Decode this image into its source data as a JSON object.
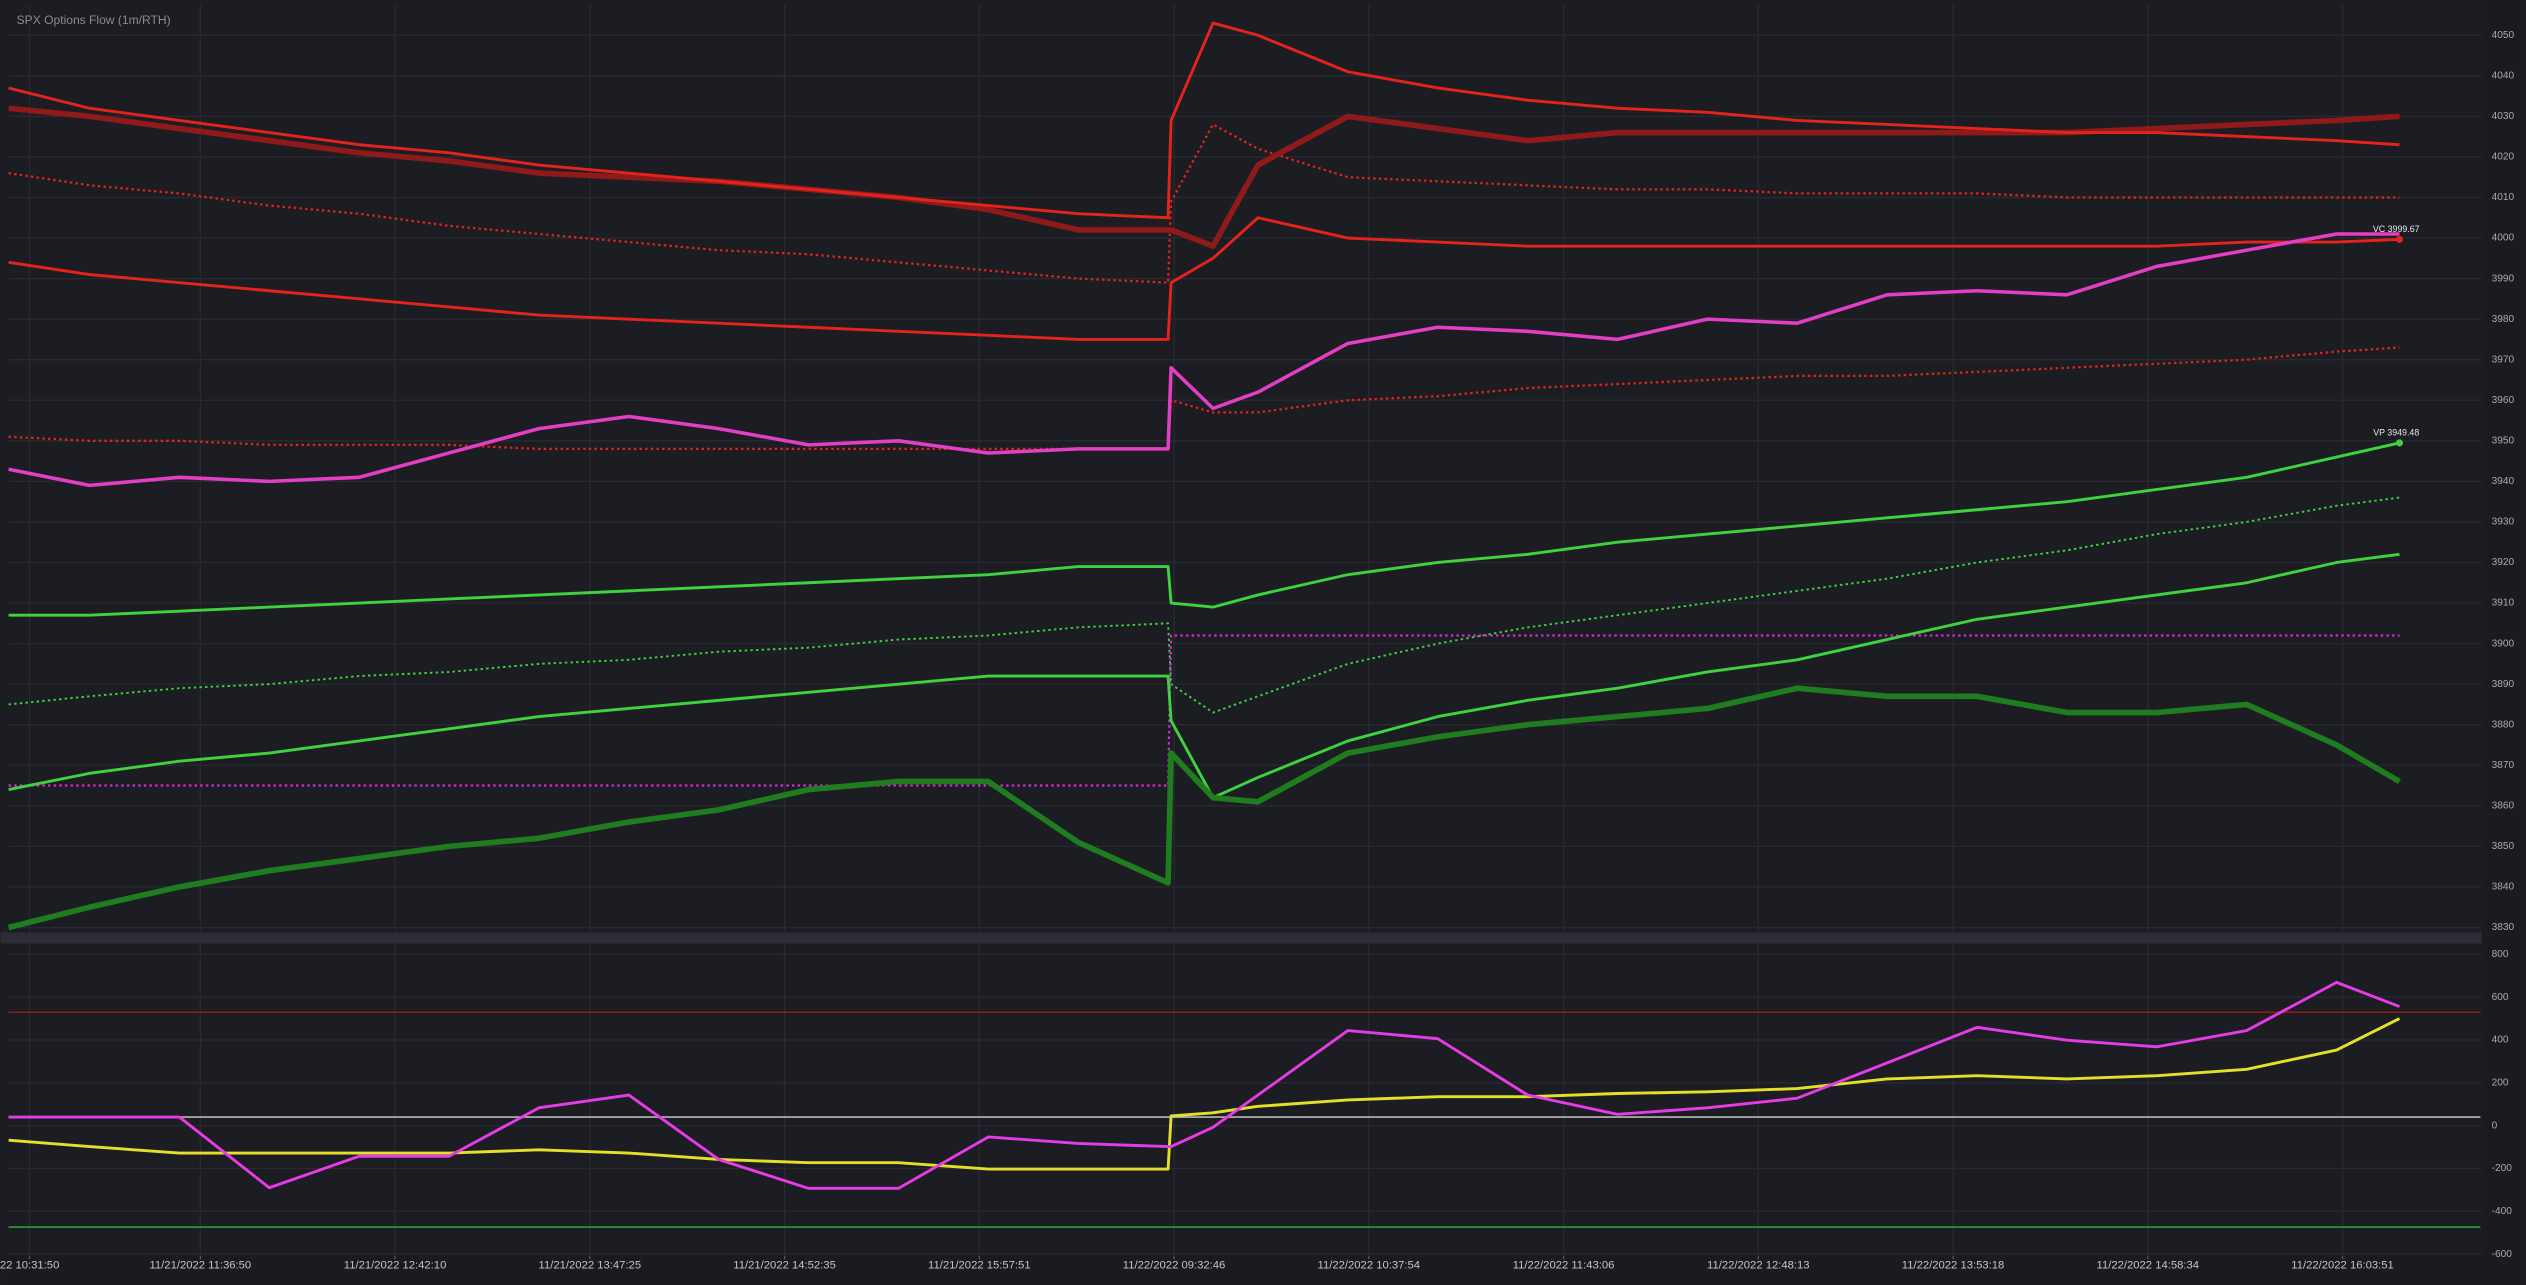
{
  "chart_data": [
    {
      "type": "line",
      "title": "SPX Options Flow (1m/RTH)",
      "x": [
        -7,
        20,
        50,
        80,
        110,
        140,
        170,
        200,
        230,
        260,
        290,
        320,
        350,
        380,
        381,
        395,
        410,
        440,
        470,
        500,
        530,
        560,
        590,
        620,
        650,
        680,
        710,
        740,
        770,
        791
      ],
      "xlim": [
        -7,
        818
      ],
      "ylim": [
        3828.8,
        4057.5
      ],
      "yticks": [
        3830,
        3840,
        3850,
        3860,
        3870,
        3880,
        3890,
        3900,
        3910,
        3920,
        3930,
        3940,
        3950,
        3960,
        3970,
        3980,
        3990,
        4000,
        4010,
        4020,
        4030,
        4040,
        4050
      ],
      "grid": true,
      "series": [
        {
          "color": "#e4231d",
          "width": 1.4,
          "dash": true,
          "values": [
            4016,
            4013,
            4011,
            4008,
            4006,
            4003,
            4001,
            3999,
            3997,
            3996,
            3994,
            3992,
            3990,
            3989,
            4009,
            4028,
            4022,
            4015,
            4014,
            4013,
            4012,
            4012,
            4011,
            4011,
            4011,
            4010,
            4010,
            4010,
            4010,
            4010
          ]
        },
        {
          "color": "#e4231d",
          "width": 1.4,
          "dash": true,
          "values": [
            3951,
            3950,
            3950,
            3949,
            3949,
            3949,
            3948,
            3948,
            3948,
            3948,
            3948,
            3948,
            3948,
            3948,
            3960,
            3957,
            3957,
            3960,
            3961,
            3963,
            3964,
            3965,
            3966,
            3966,
            3967,
            3968,
            3969,
            3970,
            3972,
            3973
          ]
        },
        {
          "color": "#3ed23e",
          "width": 1.2,
          "dash": true,
          "values": [
            3885,
            3887,
            3889,
            3890,
            3892,
            3893,
            3895,
            3896,
            3898,
            3899,
            3901,
            3902,
            3904,
            3905,
            3890,
            3883,
            3887,
            3895,
            3900,
            3904,
            3907,
            3910,
            3913,
            3916,
            3920,
            3923,
            3927,
            3930,
            3934,
            3936
          ]
        },
        {
          "color": "#d62ad6",
          "width": 1.4,
          "dash": true,
          "values": [
            3865,
            3865,
            3865,
            3865,
            3865,
            3865,
            3865,
            3865,
            3865,
            3865,
            3865,
            3865,
            3865,
            3865,
            3902,
            3902,
            3902,
            3902,
            3902,
            3902,
            3902,
            3902,
            3902,
            3902,
            3902,
            3902,
            3902,
            3902,
            3902,
            3902
          ]
        },
        {
          "color": "#8e1a1a",
          "width": 3.5,
          "values": [
            4032,
            4030,
            4027,
            4024,
            4021,
            4019,
            4016,
            4015,
            4014,
            4012,
            4010,
            4007,
            4002,
            4002,
            4002,
            3998,
            4018,
            4030,
            4027,
            4024,
            4026,
            4026,
            4026,
            4026,
            4026,
            4026,
            4027,
            4028,
            4029,
            4030
          ]
        },
        {
          "color": "#e4231d",
          "width": 1.8,
          "values": [
            4037,
            4032,
            4029,
            4026,
            4023,
            4021,
            4018,
            4016,
            4014,
            4012,
            4010,
            4008,
            4006,
            4005,
            4029,
            4053,
            4050,
            4041,
            4037,
            4034,
            4032,
            4031,
            4029,
            4028,
            4027,
            4026,
            4026,
            4025,
            4024,
            4023
          ]
        },
        {
          "color": "#e4231d",
          "width": 1.8,
          "end_marker": true,
          "values": [
            3994,
            3991,
            3989,
            3987,
            3985,
            3983,
            3981,
            3980,
            3979,
            3978,
            3977,
            3976,
            3975,
            3975,
            3989,
            3995,
            4005,
            4000,
            3999,
            3998,
            3998,
            3998,
            3998,
            3998,
            3998,
            3998,
            3998,
            3999,
            3999,
            3999.67
          ]
        },
        {
          "color": "#3ed23e",
          "width": 1.8,
          "end_marker": true,
          "values": [
            3907,
            3907,
            3908,
            3909,
            3910,
            3911,
            3912,
            3913,
            3914,
            3915,
            3916,
            3917,
            3919,
            3919,
            3910,
            3909,
            3912,
            3917,
            3920,
            3922,
            3925,
            3927,
            3929,
            3931,
            3933,
            3935,
            3938,
            3941,
            3946,
            3949.48
          ]
        },
        {
          "color": "#3ed23e",
          "width": 1.8,
          "values": [
            3864,
            3868,
            3871,
            3873,
            3876,
            3879,
            3882,
            3884,
            3886,
            3888,
            3890,
            3892,
            3892,
            3892,
            3881,
            3862,
            3867,
            3876,
            3882,
            3886,
            3889,
            3893,
            3896,
            3901,
            3906,
            3909,
            3912,
            3915,
            3920,
            3922
          ]
        },
        {
          "color": "#1f7d1f",
          "width": 3.5,
          "values": [
            3830,
            3835,
            3840,
            3844,
            3847,
            3850,
            3852,
            3856,
            3859,
            3864,
            3866,
            3866,
            3851,
            3841,
            3873,
            3862,
            3861,
            3873,
            3877,
            3880,
            3882,
            3884,
            3889,
            3887,
            3887,
            3883,
            3883,
            3885,
            3875,
            3866
          ]
        },
        {
          "color": "#e23fc4",
          "width": 2.2,
          "values": [
            3943,
            3939,
            3941,
            3940,
            3941,
            3947,
            3953,
            3956,
            3953,
            3949,
            3950,
            3947,
            3948,
            3948,
            3968,
            3958,
            3962,
            3974,
            3978,
            3977,
            3975,
            3980,
            3979,
            3986,
            3987,
            3986,
            3993,
            3997,
            4001,
            4001
          ]
        }
      ],
      "annotations": [
        {
          "text": "VC 3999.67",
          "x": 791,
          "y": 3999.67
        },
        {
          "text": "VP 3949.48",
          "x": 791,
          "y": 3949.48
        }
      ]
    },
    {
      "type": "line",
      "x": [
        -7,
        20,
        50,
        80,
        110,
        140,
        170,
        200,
        230,
        260,
        290,
        320,
        350,
        380,
        381,
        395,
        410,
        440,
        470,
        500,
        530,
        560,
        590,
        620,
        650,
        680,
        710,
        740,
        770,
        791
      ],
      "xlim": [
        -7,
        818
      ],
      "xticks": [
        {
          "value": 0,
          "label": "22 10:31:50"
        },
        {
          "value": 57,
          "label": "11/21/2022 11:36:50"
        },
        {
          "value": 122,
          "label": "11/21/2022 12:42:10"
        },
        {
          "value": 187,
          "label": "11/21/2022 13:47:25"
        },
        {
          "value": 252,
          "label": "11/21/2022 14:52:35"
        },
        {
          "value": 317,
          "label": "11/21/2022 15:57:51"
        },
        {
          "value": 382,
          "label": "11/22/2022 09:32:46"
        },
        {
          "value": 447,
          "label": "11/22/2022 10:37:54"
        },
        {
          "value": 512,
          "label": "11/22/2022 11:43:06"
        },
        {
          "value": 577,
          "label": "11/22/2022 12:48:13"
        },
        {
          "value": 642,
          "label": "11/22/2022 13:53:18"
        },
        {
          "value": 707,
          "label": "11/22/2022 14:58:34"
        },
        {
          "value": 772,
          "label": "11/22/2022 16:03:51"
        }
      ],
      "ylim": [
        -609,
        850
      ],
      "yticks": [
        -600,
        -400,
        -200,
        0,
        200,
        400,
        600,
        800
      ],
      "grid": true,
      "reference_lines": [
        {
          "value": 530,
          "color": "#8e1a1a"
        },
        {
          "value": 40,
          "color": "#b8b8b8"
        },
        {
          "value": -474,
          "color": "#2e9e2e"
        }
      ],
      "series": [
        {
          "color": "#e3e02a",
          "width": 1.8,
          "values": [
            -68,
            -98,
            -128,
            -128,
            -128,
            -128,
            -113,
            -128,
            -158,
            -173,
            -173,
            -203,
            -203,
            -203,
            45,
            60,
            90,
            120,
            135,
            135,
            150,
            158,
            173,
            218,
            233,
            218,
            233,
            263,
            353,
            500
          ]
        },
        {
          "color": "#e53ce5",
          "width": 1.8,
          "values": [
            40,
            40,
            40,
            -290,
            -143,
            -143,
            83,
            143,
            -158,
            -293,
            -293,
            -53,
            -83,
            -98,
            -98,
            -8,
            143,
            444,
            406,
            143,
            53,
            83,
            128,
            293,
            459,
            399,
            368,
            444,
            669,
            556
          ]
        }
      ]
    }
  ]
}
